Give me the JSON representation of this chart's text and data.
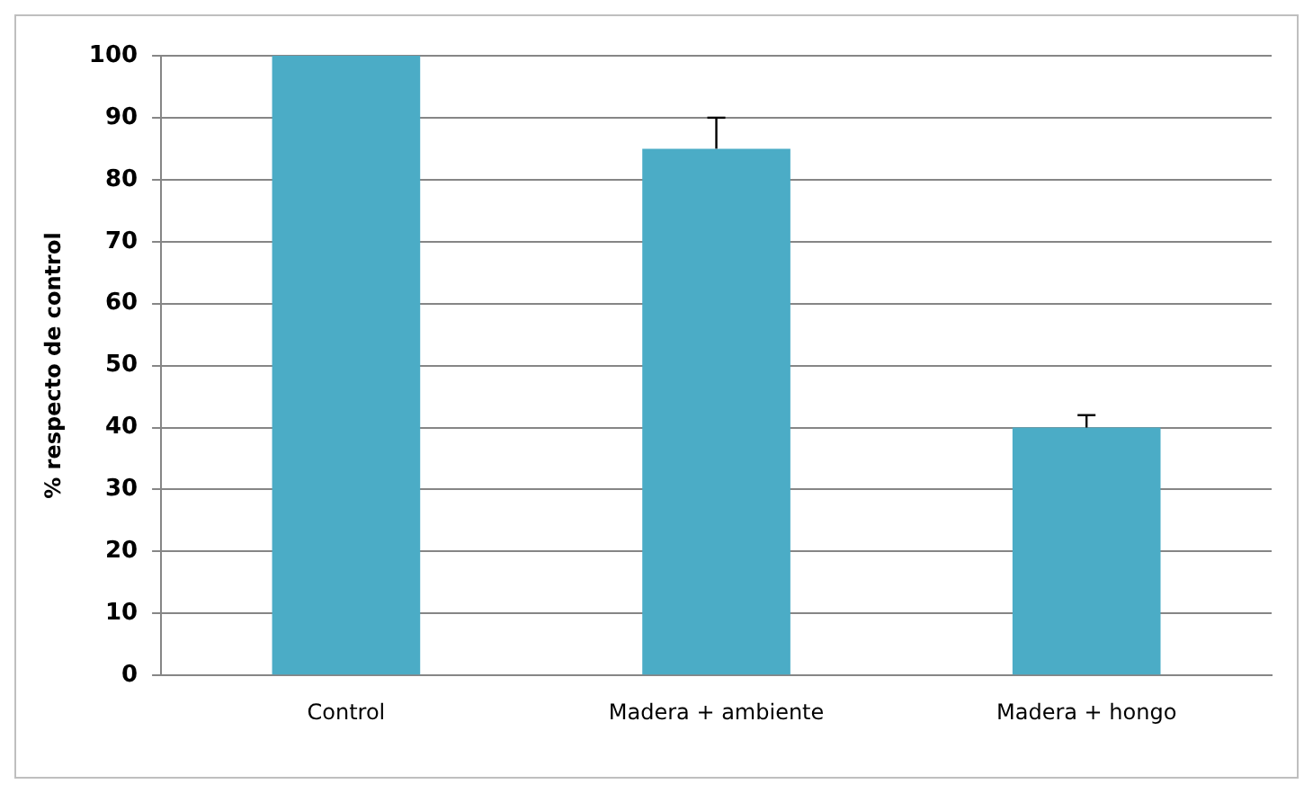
{
  "chart_data": {
    "type": "bar",
    "ylabel": "% respecto de control",
    "categories": [
      "Control",
      "Madera + ambiente",
      "Madera + hongo"
    ],
    "values": [
      100,
      85,
      40
    ],
    "errors": [
      null,
      [
        85,
        90
      ],
      [
        40,
        42
      ]
    ],
    "color": "#4bacc6",
    "ylim": [
      0,
      100
    ],
    "yticks": [
      0,
      10,
      20,
      30,
      40,
      50,
      60,
      70,
      80,
      90,
      100
    ],
    "grid": "y",
    "legend": false
  }
}
